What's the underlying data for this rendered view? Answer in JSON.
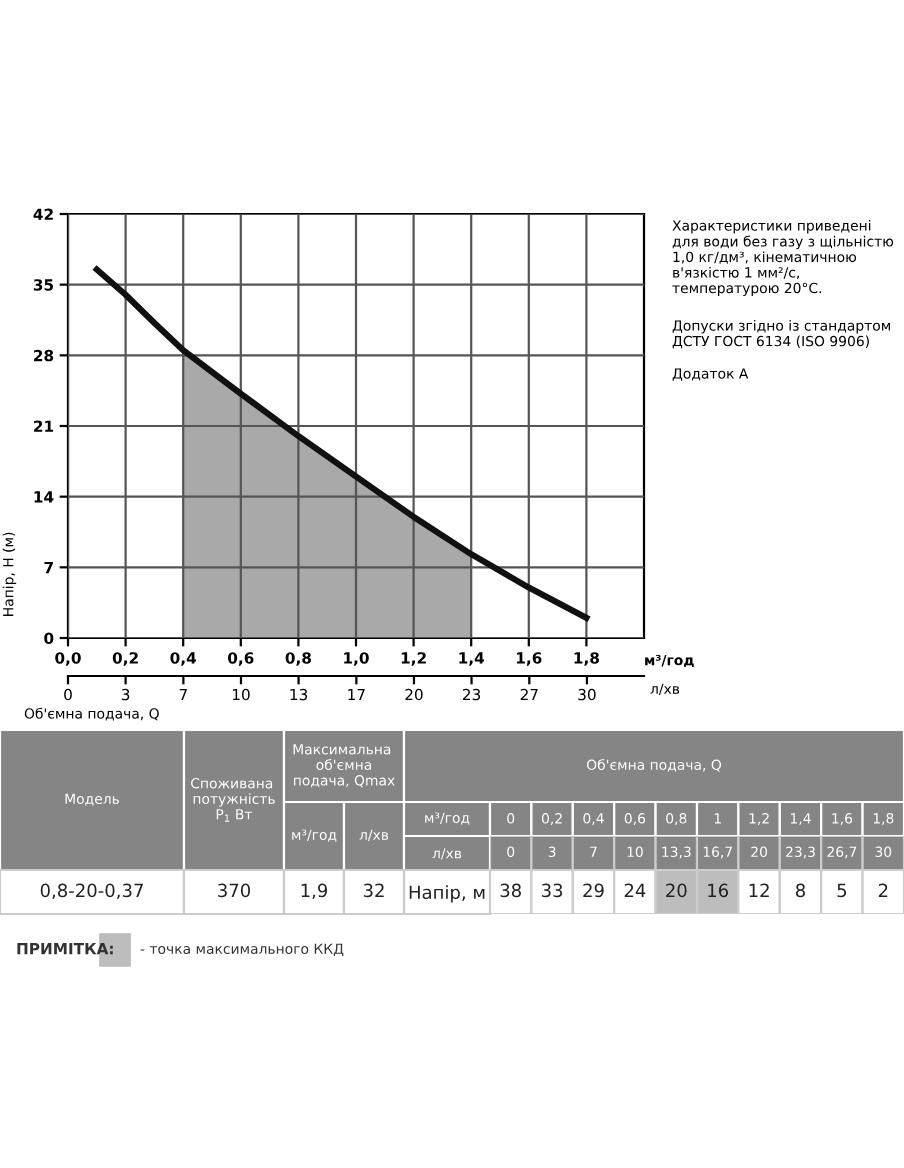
{
  "chart_data": [
    {
      "type": "line",
      "xlabel": "м³/год",
      "ylabel": "Напір, Н (м)",
      "x2label": "л/хв",
      "xlim": [
        0,
        2.0
      ],
      "xticks": [
        {
          "value": 0,
          "label": "0,0"
        },
        {
          "value": 0.2,
          "label": "0,2"
        },
        {
          "value": 0.4,
          "label": "0,4"
        },
        {
          "value": 0.6,
          "label": "0,6"
        },
        {
          "value": 0.8,
          "label": "0,8"
        },
        {
          "value": 1.0,
          "label": "1,0"
        },
        {
          "value": 1.2,
          "label": "1,2"
        },
        {
          "value": 1.4,
          "label": "1,4"
        },
        {
          "value": 1.6,
          "label": "1,6"
        },
        {
          "value": 1.8,
          "label": "1,8"
        }
      ],
      "x2lim": [
        0,
        33.3
      ],
      "x2ticks": [
        0,
        {
          "value": 3.33,
          "label": "3"
        },
        {
          "value": 6.67,
          "label": "7"
        },
        10,
        {
          "value": 13.33,
          "label": "13"
        },
        {
          "value": 16.67,
          "label": "17"
        },
        20,
        {
          "value": 23.33,
          "label": "23"
        },
        {
          "value": 26.67,
          "label": "27"
        },
        30
      ],
      "ylim": [
        0,
        42
      ],
      "yticks": [
        0,
        7,
        14,
        21,
        28,
        35,
        42
      ],
      "grid": true,
      "legend": false,
      "series": [
        {
          "type": "area",
          "color": "#a9a9a9",
          "x": [
            0.4,
            0.6,
            0.8,
            1.0,
            1.2,
            1.4
          ],
          "values": [
            28.5,
            24.2,
            20.0,
            16.0,
            12.0,
            8.3
          ]
        },
        {
          "type": "line",
          "color": "#111111",
          "x": [
            0.1,
            0.2,
            0.3,
            0.4,
            0.6,
            0.8,
            1.0,
            1.2,
            1.4,
            1.6,
            1.8
          ],
          "values": [
            36.5,
            34.0,
            31.2,
            28.5,
            24.2,
            20.0,
            16.0,
            12.0,
            8.3,
            5.0,
            2.0
          ]
        }
      ],
      "annotations": [
        "Об'ємна подача, Q",
        "Характеристики приведені для води без газу з щільністю 1,0 кг/дм³, кінематичною в'язкістю 1 мм²/с, температурою 20°С.",
        "Допуски згідно із стандартом ДСТУ ГОСТ 6134 (ISO 9906)",
        "Додаток А"
      ]
    },
    {
      "type": "heatmap",
      "categories": [
        "0",
        "0,2",
        "0,4",
        "0,6",
        "0,8",
        "1",
        "1,2",
        "1,4",
        "1,6",
        "1,8"
      ],
      "y_categories": [
        "л/хв",
        "Напір, м"
      ],
      "cells": [
        [
          0,
          3,
          7,
          10,
          13.3,
          16.7,
          20,
          23.3,
          26.7,
          30
        ],
        [
          38,
          33,
          29,
          24,
          20,
          16,
          12,
          8,
          5,
          2
        ]
      ],
      "cell_labels": [
        [
          "0",
          "3",
          "7",
          "10",
          "13,3",
          "16,7",
          "20",
          "23,3",
          "26,7",
          "30"
        ],
        [
          "38",
          "33",
          "29",
          "24",
          "20",
          "16",
          "12",
          "8",
          "5",
          "2"
        ]
      ],
      "colors": [
        [
          "#858585",
          "#858585",
          "#858585",
          "#858585",
          "#858585",
          "#858585",
          "#858585",
          "#858585",
          "#858585",
          "#858585"
        ],
        [
          "#ffffff",
          "#ffffff",
          "#ffffff",
          "#ffffff",
          "#bdbdbd",
          "#bdbdbd",
          "#ffffff",
          "#ffffff",
          "#ffffff",
          "#ffffff"
        ]
      ],
      "annotations": [
        "Модель",
        "Споживана потужність P$_{1}$ Вт",
        "Максимальна об'ємна подача, Qmax",
        "м³/год",
        "л/хв",
        "Об'ємна подача, Q",
        "м³/год",
        "0,8-20-0,37",
        "370",
        "1,9",
        "32",
        "ПРИМІТКА:",
        "- точка максимального ККД"
      ]
    }
  ]
}
